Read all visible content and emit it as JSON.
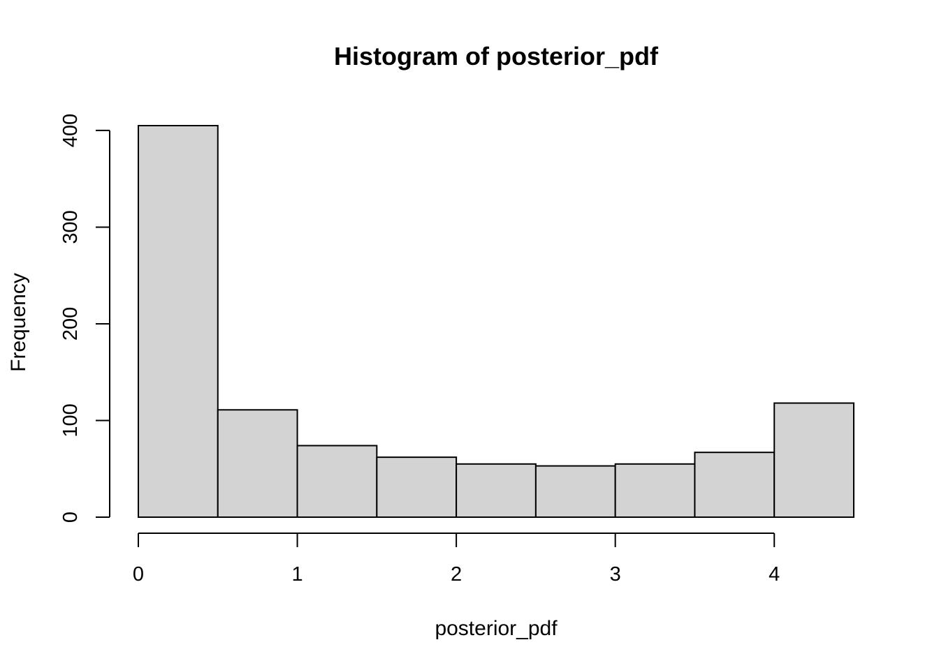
{
  "chart_data": {
    "type": "bar",
    "title": "Histogram of posterior_pdf",
    "xlabel": "posterior_pdf",
    "ylabel": "Frequency",
    "bin_edges": [
      0,
      0.5,
      1,
      1.5,
      2,
      2.5,
      3,
      3.5,
      4,
      4.5
    ],
    "values": [
      405,
      111,
      74,
      62,
      55,
      53,
      55,
      67,
      118
    ],
    "xticks": [
      0,
      1,
      2,
      3,
      4
    ],
    "yticks": [
      0,
      100,
      200,
      300,
      400
    ],
    "xlim": [
      0,
      4.5
    ],
    "ylim": [
      0,
      405
    ],
    "bar_fill": "#d3d3d3",
    "bar_stroke": "#000000",
    "grid": false,
    "legend": "none"
  }
}
